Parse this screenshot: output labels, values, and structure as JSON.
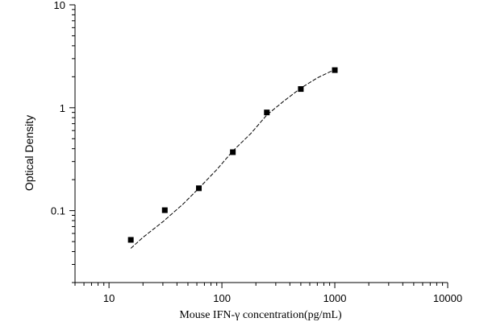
{
  "chart_data": {
    "type": "scatter",
    "title": "",
    "xlabel": "Mouse IFN-γ  concentration(pg/mL)",
    "ylabel": "Optical Density",
    "x_scale": "log",
    "y_scale": "log",
    "xlim": [
      5,
      10000
    ],
    "ylim": [
      0.02,
      10
    ],
    "x_ticks": [
      {
        "value": 10,
        "label": "10"
      },
      {
        "value": 100,
        "label": "100"
      },
      {
        "value": 1000,
        "label": "1000"
      },
      {
        "value": 10000,
        "label": "10000"
      }
    ],
    "y_ticks": [
      {
        "value": 0.1,
        "label": "0.1"
      },
      {
        "value": 1,
        "label": "1"
      },
      {
        "value": 10,
        "label": "10"
      }
    ],
    "grid": false,
    "legend": "none",
    "colors": {
      "points": "#000000",
      "fit_line": "#000000",
      "axes": "#000000"
    },
    "points": {
      "x": [
        15.6,
        31.2,
        62.5,
        125,
        250,
        500,
        1000
      ],
      "y": [
        0.052,
        0.101,
        0.165,
        0.37,
        0.9,
        1.52,
        2.32
      ]
    },
    "fit_curve": {
      "style": "dashed",
      "x": [
        15.6,
        20,
        30,
        45,
        62.5,
        90,
        125,
        180,
        250,
        350,
        500,
        700,
        1000
      ],
      "y": [
        0.043,
        0.055,
        0.078,
        0.115,
        0.165,
        0.25,
        0.38,
        0.56,
        0.85,
        1.15,
        1.55,
        1.95,
        2.35
      ]
    }
  }
}
